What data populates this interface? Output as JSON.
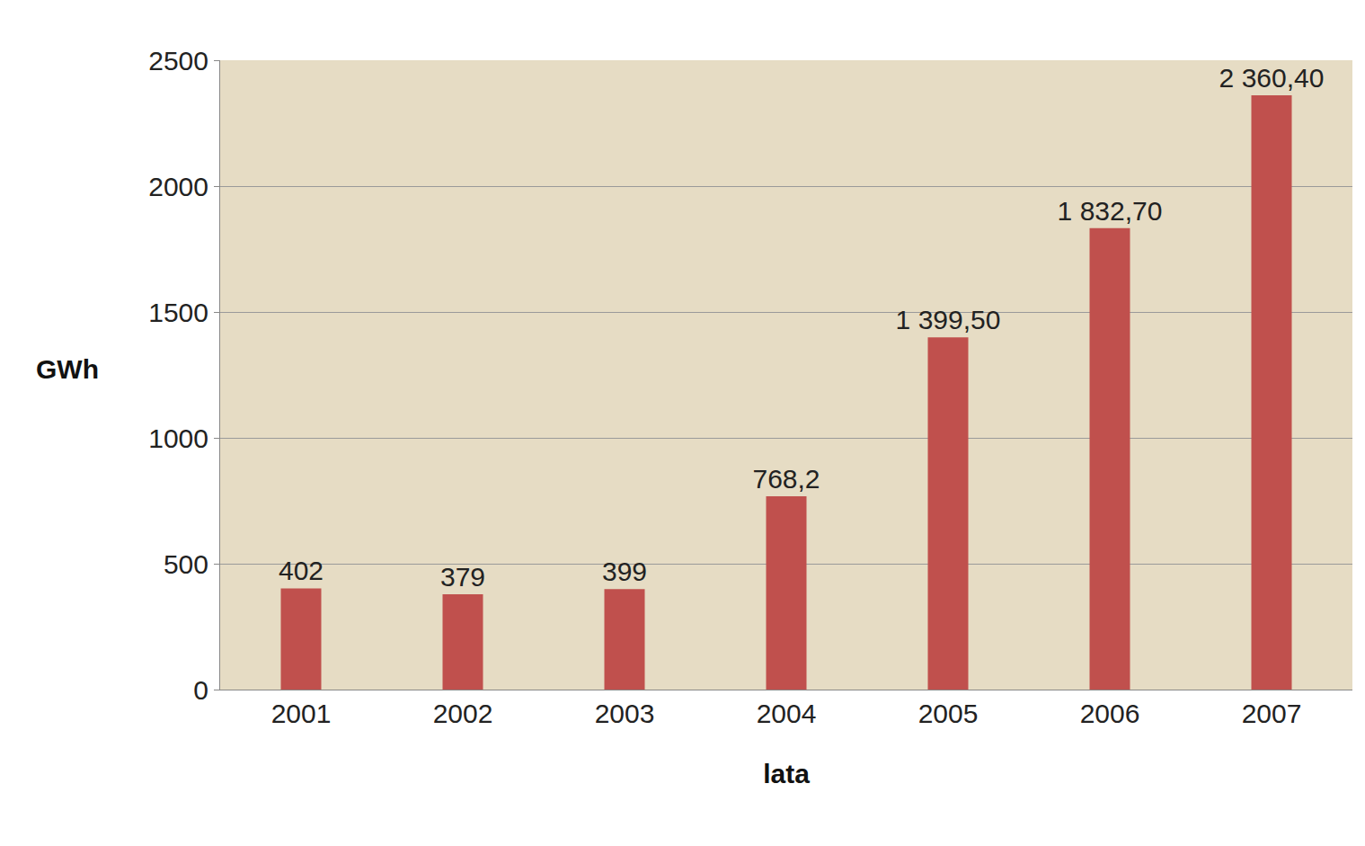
{
  "chart_data": {
    "type": "bar",
    "x_label": "lata",
    "y_label": "GWh",
    "categories": [
      "2001",
      "2002",
      "2003",
      "2004",
      "2005",
      "2006",
      "2007"
    ],
    "values": [
      402,
      379,
      399,
      768.2,
      1399.5,
      1832.7,
      2360.4
    ],
    "value_labels": [
      "402",
      "379",
      "399",
      "768,2",
      "1 399,50",
      "1 832,70",
      "2 360,40"
    ],
    "color": "#c0504d",
    "ylim": [
      0,
      2500
    ],
    "yticks": [
      0,
      500,
      1000,
      1500,
      2000,
      2500
    ],
    "grid": true,
    "data_labels": true
  }
}
